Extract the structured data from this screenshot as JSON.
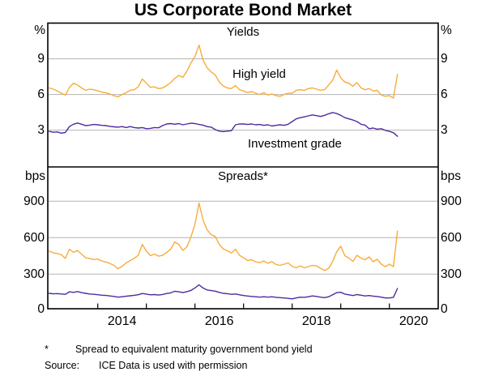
{
  "title": "US Corporate Bond Market",
  "colors": {
    "high_yield": "#F8AC3B",
    "investment_grade": "#4E2B9F",
    "gridline": "#b3b3b3",
    "frame": "#000000"
  },
  "x_axis": {
    "start_year": 2013,
    "end_year": 2021,
    "tick_years": [
      2014,
      2015,
      2016,
      2017,
      2018,
      2019,
      2020
    ],
    "year_labels": [
      "2014",
      "2016",
      "2018",
      "2020"
    ]
  },
  "chart_data": [
    {
      "type": "line",
      "panel": "top",
      "title": "Yields",
      "unit_left": "%",
      "unit_right": "%",
      "ylim": [
        0,
        12.2
      ],
      "yticks": [
        9,
        6,
        3
      ],
      "x_start": 2013.0,
      "x_step": 0.0833333,
      "series": [
        {
          "name": "High yield",
          "color": "#F8AC3B",
          "values": [
            6.55,
            6.45,
            6.3,
            6.1,
            5.95,
            6.6,
            6.95,
            6.8,
            6.55,
            6.35,
            6.45,
            6.4,
            6.3,
            6.2,
            6.15,
            6.05,
            5.9,
            5.8,
            6.0,
            6.15,
            6.35,
            6.4,
            6.65,
            7.3,
            6.95,
            6.6,
            6.65,
            6.5,
            6.55,
            6.75,
            7.0,
            7.35,
            7.6,
            7.45,
            7.95,
            8.65,
            9.2,
            10.15,
            8.9,
            8.25,
            7.9,
            7.65,
            7.05,
            6.7,
            6.55,
            6.5,
            6.75,
            6.4,
            6.3,
            6.15,
            6.25,
            6.1,
            6.0,
            6.15,
            5.95,
            6.05,
            5.9,
            5.85,
            6.0,
            6.1,
            6.1,
            6.35,
            6.4,
            6.35,
            6.5,
            6.55,
            6.45,
            6.35,
            6.4,
            6.8,
            7.2,
            8.05,
            7.4,
            7.05,
            6.95,
            6.7,
            7.0,
            6.55,
            6.4,
            6.5,
            6.3,
            6.35,
            5.95,
            5.85,
            5.9,
            5.7,
            7.7
          ]
        },
        {
          "name": "Investment grade",
          "color": "#4E2B9F",
          "values": [
            2.9,
            2.82,
            2.85,
            2.75,
            2.8,
            3.3,
            3.5,
            3.6,
            3.5,
            3.38,
            3.42,
            3.48,
            3.45,
            3.4,
            3.38,
            3.32,
            3.28,
            3.25,
            3.3,
            3.22,
            3.3,
            3.22,
            3.18,
            3.22,
            3.12,
            3.15,
            3.22,
            3.2,
            3.38,
            3.52,
            3.55,
            3.5,
            3.55,
            3.45,
            3.52,
            3.58,
            3.55,
            3.48,
            3.42,
            3.3,
            3.25,
            3.05,
            2.92,
            2.88,
            2.92,
            2.95,
            3.45,
            3.52,
            3.52,
            3.48,
            3.52,
            3.45,
            3.48,
            3.4,
            3.45,
            3.35,
            3.4,
            3.45,
            3.4,
            3.5,
            3.72,
            3.95,
            4.05,
            4.12,
            4.2,
            4.28,
            4.22,
            4.15,
            4.25,
            4.38,
            4.48,
            4.4,
            4.25,
            4.05,
            3.95,
            3.85,
            3.72,
            3.5,
            3.42,
            3.12,
            3.18,
            3.08,
            3.12,
            2.98,
            2.9,
            2.78,
            2.48
          ]
        }
      ]
    },
    {
      "type": "line",
      "panel": "bottom",
      "title": "Spreads*",
      "unit_left": "bps",
      "unit_right": "bps",
      "ylim": [
        0,
        1180
      ],
      "yticks": [
        900,
        600,
        300,
        0
      ],
      "x_start": 2013.0,
      "x_step": 0.0833333,
      "series": [
        {
          "name": "High yield",
          "color": "#F8AC3B",
          "values": [
            490,
            475,
            470,
            460,
            430,
            505,
            480,
            495,
            465,
            435,
            428,
            420,
            425,
            408,
            400,
            388,
            372,
            345,
            365,
            392,
            412,
            430,
            455,
            545,
            490,
            452,
            465,
            448,
            455,
            478,
            505,
            565,
            545,
            495,
            525,
            605,
            710,
            885,
            745,
            665,
            625,
            610,
            545,
            508,
            492,
            475,
            505,
            455,
            435,
            412,
            418,
            402,
            395,
            408,
            390,
            402,
            380,
            372,
            382,
            392,
            365,
            352,
            368,
            352,
            362,
            372,
            368,
            348,
            330,
            348,
            405,
            485,
            530,
            452,
            432,
            405,
            455,
            432,
            418,
            442,
            402,
            422,
            382,
            362,
            382,
            362,
            655
          ]
        },
        {
          "name": "Investment grade",
          "color": "#4E2B9F",
          "values": [
            142,
            138,
            140,
            137,
            134,
            155,
            150,
            157,
            148,
            142,
            137,
            134,
            131,
            127,
            125,
            121,
            117,
            111,
            114,
            118,
            122,
            126,
            131,
            141,
            136,
            130,
            132,
            128,
            133,
            141,
            146,
            159,
            155,
            148,
            156,
            166,
            187,
            212,
            186,
            170,
            165,
            160,
            150,
            142,
            139,
            134,
            137,
            130,
            124,
            120,
            117,
            114,
            111,
            114,
            111,
            114,
            109,
            107,
            104,
            101,
            97,
            104,
            111,
            109,
            114,
            121,
            117,
            111,
            107,
            114,
            131,
            148,
            151,
            136,
            130,
            124,
            132,
            127,
            121,
            124,
            119,
            116,
            111,
            104,
            104,
            109,
            182
          ]
        }
      ]
    }
  ],
  "labels": {
    "high_yield": "High yield",
    "investment_grade": "Investment grade"
  },
  "footnote": {
    "marker": "*",
    "text": "Spread to equivalent maturity government bond yield"
  },
  "source": {
    "label": "Source:",
    "text": "ICE Data is used with permission"
  }
}
